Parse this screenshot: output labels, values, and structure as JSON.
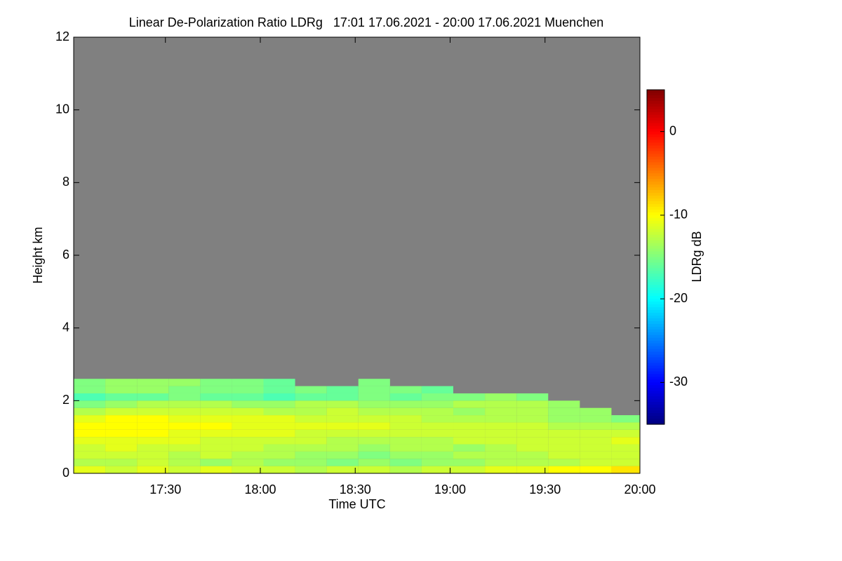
{
  "chart_data": {
    "type": "heatmap",
    "title": "Linear De-Polarization Ratio LDRg   17:01 17.06.2021 - 20:00 17.06.2021 Muenchen",
    "xlabel": "Time UTC",
    "ylabel": "Height km",
    "colorbar_label": "LDRg dB",
    "colormap": "jet",
    "missing_color": "#808080",
    "x": [
      "17:06",
      "17:16",
      "17:26",
      "17:36",
      "17:46",
      "17:56",
      "18:06",
      "18:16",
      "18:26",
      "18:36",
      "18:46",
      "18:56",
      "19:06",
      "19:16",
      "19:26",
      "19:36",
      "19:46",
      "19:56"
    ],
    "y": [
      0.1,
      0.3,
      0.5,
      0.7,
      0.9,
      1.1,
      1.3,
      1.5,
      1.7,
      1.9,
      2.1,
      2.3,
      2.5
    ],
    "z": [
      [
        -11,
        -12,
        -11,
        -12,
        -11,
        -12,
        -12,
        -13,
        -12,
        -12,
        -13,
        -12,
        -12,
        -11,
        -11,
        -10,
        -10,
        -9
      ],
      [
        -13,
        -13,
        -12,
        -13,
        -14,
        -13,
        -14,
        -14,
        -15,
        -14,
        -15,
        -14,
        -14,
        -13,
        -13,
        -13,
        -12,
        -12
      ],
      [
        -12,
        -12,
        -12,
        -13,
        -12,
        -13,
        -13,
        -14,
        -14,
        -15,
        -14,
        -14,
        -13,
        -13,
        -13,
        -12,
        -12,
        -12
      ],
      [
        -12,
        -11,
        -12,
        -12,
        -12,
        -12,
        -13,
        -13,
        -13,
        -14,
        -13,
        -13,
        -14,
        -13,
        -12,
        -12,
        -12,
        -12
      ],
      [
        -11,
        -11,
        -11,
        -11,
        -12,
        -12,
        -12,
        -12,
        -13,
        -13,
        -13,
        -13,
        -12,
        -12,
        -12,
        -12,
        -12,
        -11
      ],
      [
        -10,
        -10,
        -10,
        -11,
        -11,
        -11,
        -11,
        -12,
        -12,
        -12,
        -12,
        -12,
        -12,
        -12,
        -12,
        -12,
        -12,
        -12
      ],
      [
        -10,
        -10,
        -10,
        -10,
        -10,
        -11,
        -11,
        -11,
        -11,
        -11,
        -12,
        -12,
        -12,
        -12,
        -12,
        -13,
        -13,
        -13
      ],
      [
        -11,
        -10,
        -10,
        -11,
        -11,
        -11,
        -11,
        -12,
        -12,
        -12,
        -12,
        -13,
        -13,
        -13,
        -13,
        -14,
        -14,
        -15
      ],
      [
        -13,
        -12,
        -12,
        -12,
        -12,
        -12,
        -13,
        -13,
        -12,
        -13,
        -13,
        -13,
        -14,
        -13,
        -13,
        -14,
        -14,
        null
      ],
      [
        -15,
        -14,
        -13,
        -13,
        -13,
        -14,
        -14,
        -13,
        -13,
        -14,
        -14,
        -14,
        -13,
        -13,
        -13,
        -14,
        null,
        null
      ],
      [
        -17,
        -16,
        -16,
        -15,
        -16,
        -16,
        -17,
        -16,
        -16,
        -15,
        -16,
        -15,
        -15,
        -14,
        -15,
        null,
        null,
        null
      ],
      [
        -15,
        -14,
        -14,
        -15,
        -15,
        -15,
        -16,
        -15,
        -16,
        -15,
        -15,
        -16,
        null,
        null,
        null,
        null,
        null,
        null
      ],
      [
        -15,
        -14,
        -14,
        -14,
        -15,
        -15,
        -16,
        null,
        null,
        -15,
        null,
        null,
        null,
        null,
        null,
        null,
        null,
        null
      ]
    ],
    "xlim": [
      "17:01",
      "20:00"
    ],
    "xticks": [
      "17:30",
      "18:00",
      "18:30",
      "19:00",
      "19:30",
      "20:00"
    ],
    "ylim": [
      0,
      12
    ],
    "yticks": [
      0,
      2,
      4,
      6,
      8,
      10,
      12
    ],
    "zlim": [
      -35,
      5
    ],
    "zticks": [
      0,
      -10,
      -20,
      -30
    ]
  }
}
